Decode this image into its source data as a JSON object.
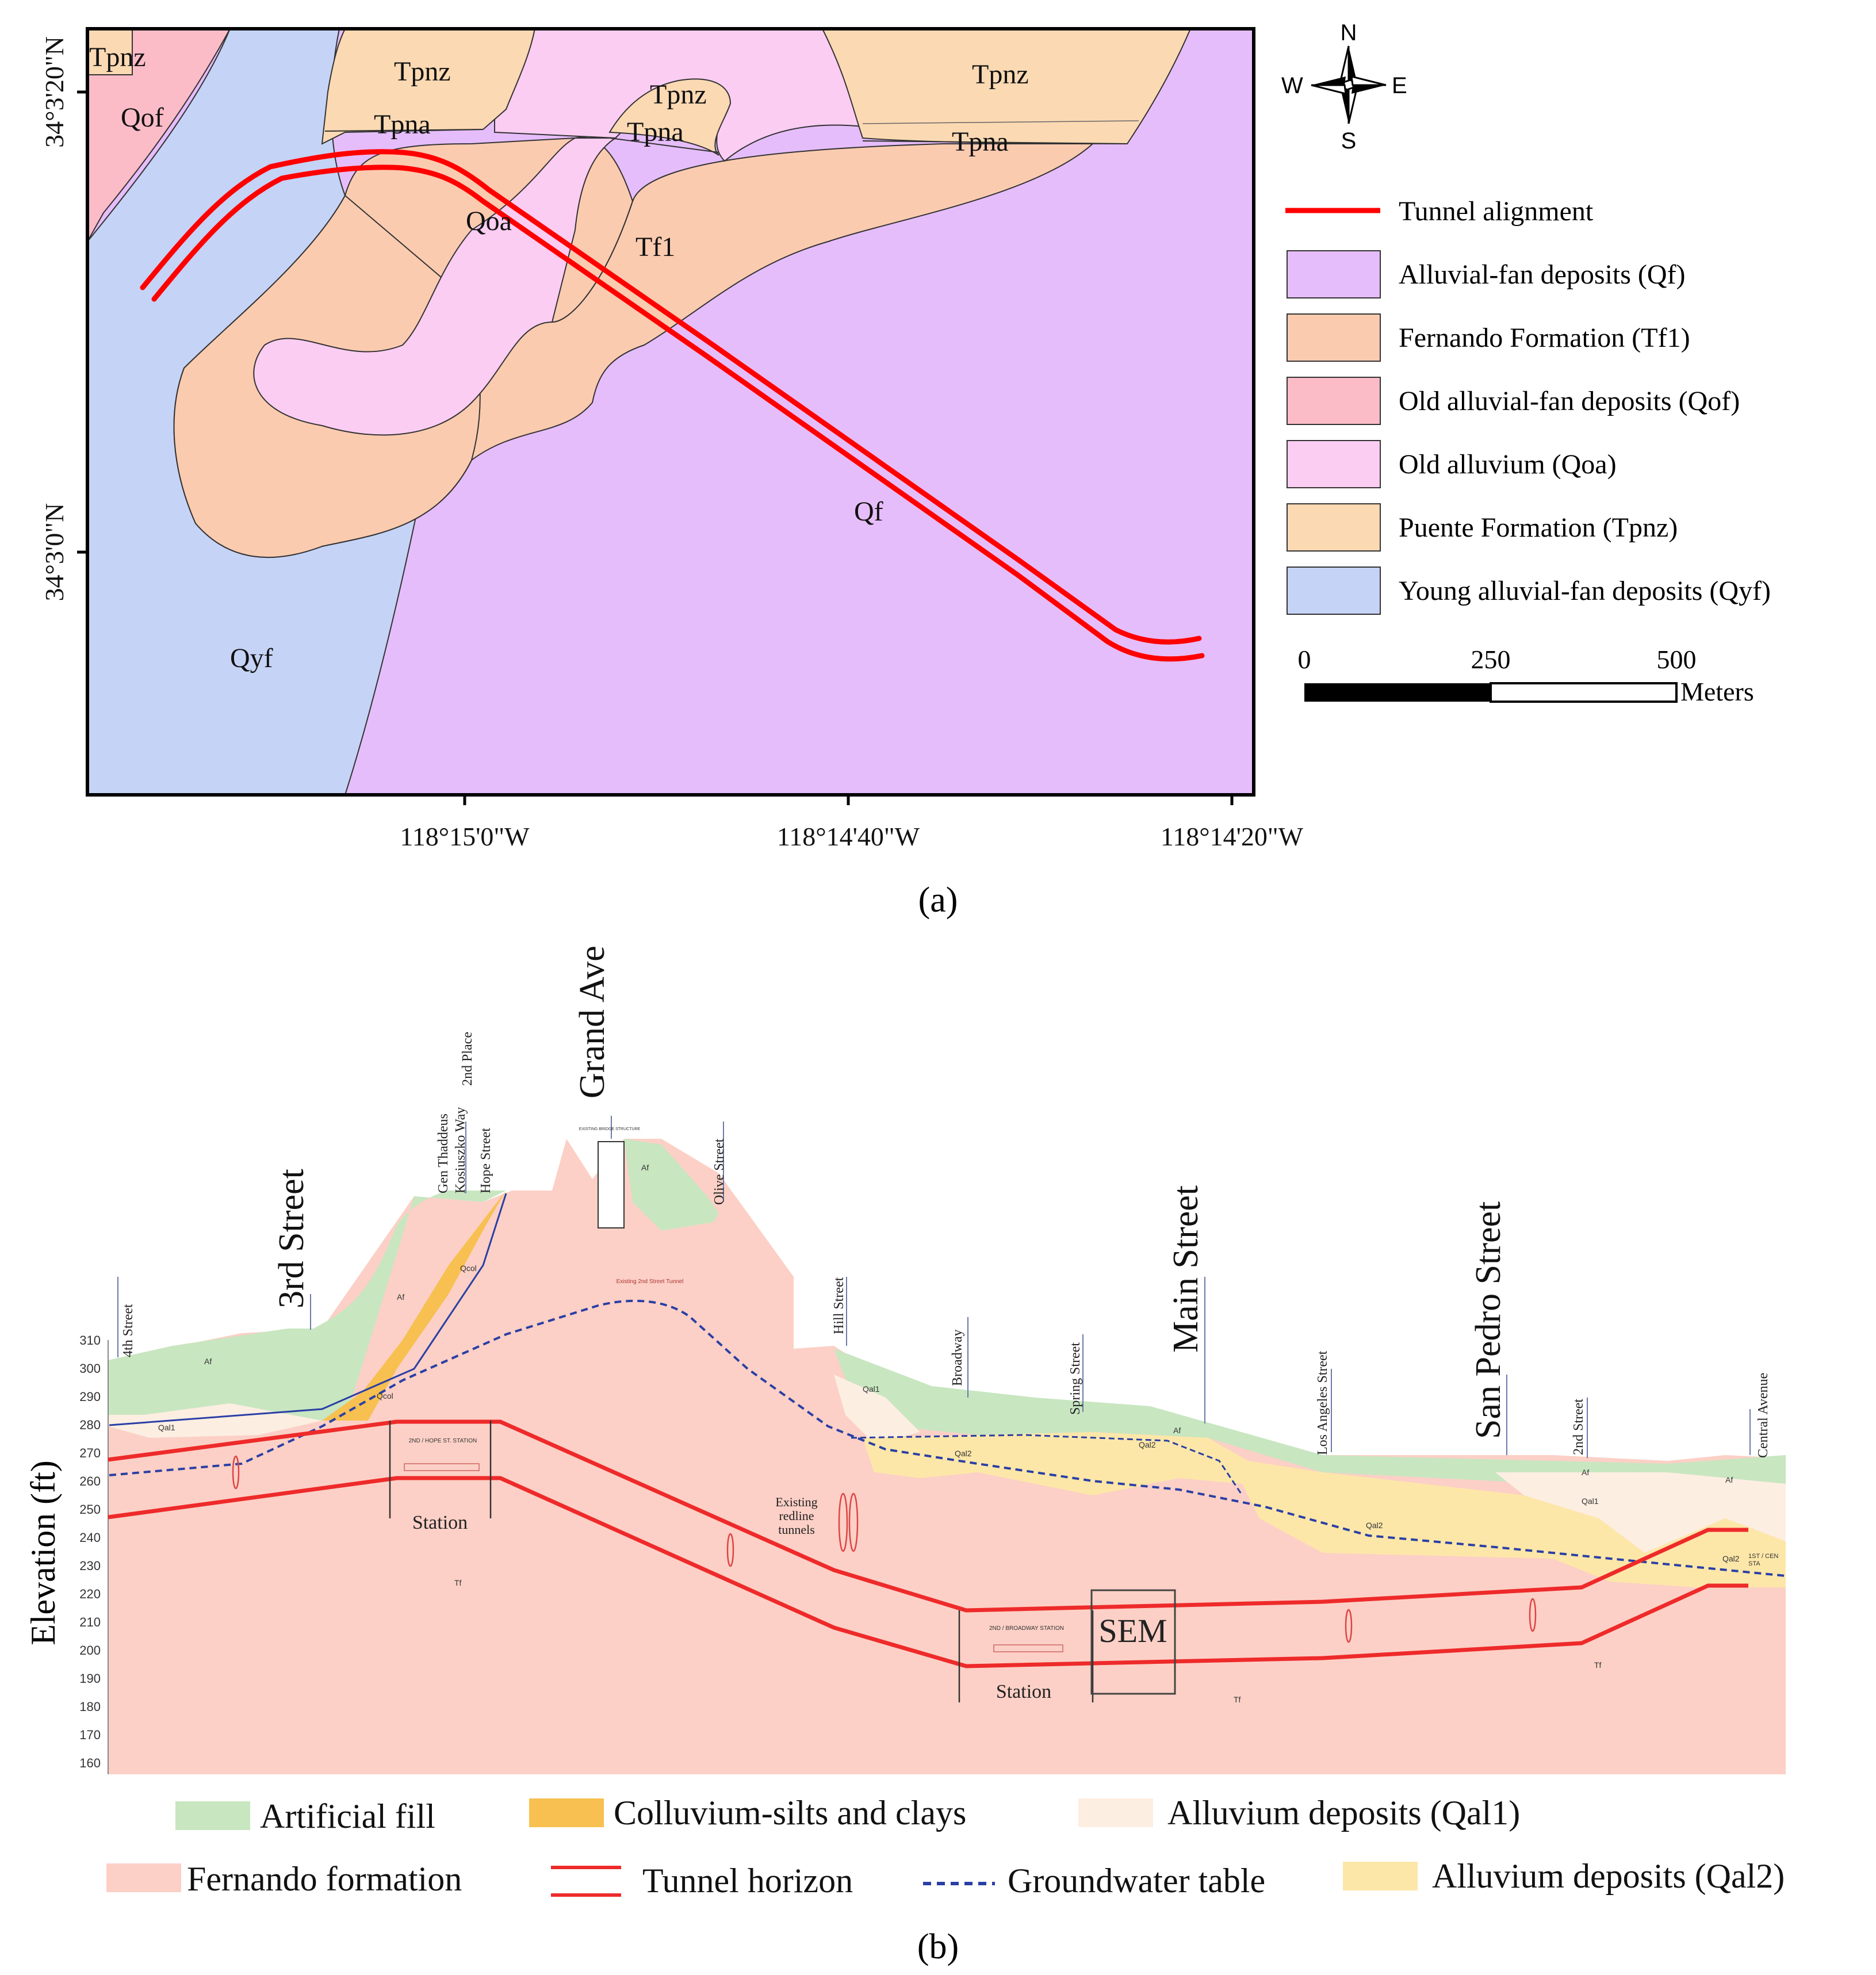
{
  "panel_a": {
    "caption": "(a)",
    "unit_labels": [
      "Tpnz",
      "Qof",
      "Tpnz",
      "Tpna",
      "Tpnz",
      "Tpna",
      "Tpnz",
      "Tpna",
      "Qoa",
      "Tf1",
      "Qf",
      "Qyf"
    ],
    "lat_ticks": [
      "34°3'20\"N",
      "34°3'0\"N"
    ],
    "lon_ticks": [
      "118°15'0\"W",
      "118°14'40\"W",
      "118°14'20\"W"
    ],
    "compass": {
      "n": "N",
      "s": "S",
      "e": "E",
      "w": "W"
    },
    "legend": [
      {
        "label": "Tunnel alignment",
        "color": "#ff0000",
        "kind": "line"
      },
      {
        "label": "Alluvial-fan deposits (Qf)",
        "color": "#e6bdfb",
        "kind": "box"
      },
      {
        "label": "Fernando Formation (Tf1)",
        "color": "#fbcbb0",
        "kind": "box"
      },
      {
        "label": "Old alluvial-fan deposits (Qof)",
        "color": "#fbbcc8",
        "kind": "box"
      },
      {
        "label": "Old alluvium (Qoa)",
        "color": "#fbcdf3",
        "kind": "box"
      },
      {
        "label": "Puente Formation (Tpnz)",
        "color": "#fbd9b3",
        "kind": "box"
      },
      {
        "label": "Young alluvial-fan deposits (Qyf)",
        "color": "#c5d3f6",
        "kind": "box"
      }
    ],
    "scale": {
      "ticks": [
        "0",
        "250",
        "500"
      ],
      "unit": "Meters"
    }
  },
  "panel_b": {
    "caption": "(b)",
    "y_axis": {
      "label": "Elevation (ft)",
      "ticks": [
        "310",
        "300",
        "290",
        "280",
        "270",
        "260",
        "250",
        "240",
        "230",
        "220",
        "210",
        "200",
        "190",
        "180",
        "170",
        "160"
      ]
    },
    "big_streets": [
      "3rd Street",
      "Grand Ave",
      "Main Street",
      "San Pedro Street"
    ],
    "small_streets": [
      "4th Street",
      "Gen Thaddeus",
      "Kosiuszko Way",
      "2nd Place",
      "Hope Street",
      "Olive Street",
      "Hill Street",
      "Broadway",
      "Spring Street",
      "Los Angeles Street",
      "2nd Street",
      "Central Avenue"
    ],
    "labels": {
      "station_left": "Station",
      "station_right": "Station",
      "sem": "SEM",
      "existing_redline": "Existing redline tunnels",
      "hope_station": "2ND / HOPE ST. STATION",
      "broadway_station": "2ND / BROADWAY STATION",
      "existing_2nd_tunnel": "Existing 2nd Street Tunnel",
      "bridge": "EXISTING BRIDGE STRUCTURE",
      "central_station": "1ST / CEN STA"
    },
    "unit_tags": [
      "Af",
      "Af",
      "Af",
      "Af",
      "Af",
      "Af",
      "Qal1",
      "Qal1",
      "Qal1",
      "Qal2",
      "Qal2",
      "Qal2",
      "Qal2",
      "Qcol",
      "Qcol",
      "Tf",
      "Tf",
      "Tf"
    ],
    "legend": [
      {
        "label": "Artificial fill",
        "color": "#c8e6c0",
        "kind": "box"
      },
      {
        "label": "Colluvium-silts and clays",
        "color": "#f7c050",
        "kind": "box"
      },
      {
        "label": "Alluvium deposits (Qal1)",
        "color": "#fdeee2",
        "kind": "box"
      },
      {
        "label": "Fernando formation",
        "color": "#fcd0c6",
        "kind": "box"
      },
      {
        "label": "Tunnel horizon",
        "color": "#ee2a2a",
        "kind": "double"
      },
      {
        "label": "Groundwater table",
        "color": "#2a3fa5",
        "kind": "dash"
      },
      {
        "label": "Alluvium deposits (Qal2)",
        "color": "#fde7a8",
        "kind": "box"
      }
    ]
  }
}
